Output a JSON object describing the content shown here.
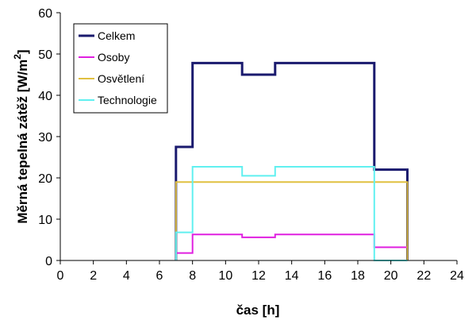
{
  "chart_data": {
    "type": "line",
    "xlabel": "čas [h]",
    "ylabel": "Měrná tepelná zátěž [W/m",
    "ylabel_superscript": "2",
    "ylabel_close": "]",
    "xlim": [
      0,
      24
    ],
    "ylim": [
      0,
      60
    ],
    "x_ticks": [
      "0",
      "2",
      "4",
      "6",
      "8",
      "10",
      "12",
      "14",
      "16",
      "18",
      "20",
      "22",
      "24"
    ],
    "y_ticks": [
      "0",
      "10",
      "20",
      "30",
      "40",
      "50",
      "60"
    ],
    "grid": false,
    "legend_position": "top-left",
    "series": [
      {
        "name": "Celkem",
        "color": "#1a1a6e",
        "x": [
          7,
          7,
          8,
          8,
          11,
          11,
          13,
          13,
          19,
          19,
          21,
          21
        ],
        "y": [
          0,
          27.5,
          27.5,
          47.8,
          47.8,
          45,
          45,
          47.8,
          47.8,
          22,
          22,
          0
        ]
      },
      {
        "name": "Osoby",
        "color": "#e020e0",
        "x": [
          7,
          7,
          8,
          8,
          11,
          11,
          13,
          13,
          19,
          19,
          21,
          21
        ],
        "y": [
          0,
          1.8,
          1.8,
          6.3,
          6.3,
          5.6,
          5.6,
          6.3,
          6.3,
          3.2,
          3.2,
          0
        ]
      },
      {
        "name": "Osvětlení",
        "color": "#e0c040",
        "x": [
          7,
          7,
          21,
          21
        ],
        "y": [
          0,
          19,
          19,
          0
        ]
      },
      {
        "name": "Technologie",
        "color": "#60f0f0",
        "x": [
          7,
          7,
          8,
          8,
          11,
          11,
          13,
          13,
          19,
          19,
          21,
          21
        ],
        "y": [
          0,
          6.8,
          6.8,
          22.7,
          22.7,
          20.5,
          20.5,
          22.7,
          22.7,
          0,
          0,
          0
        ]
      }
    ]
  }
}
